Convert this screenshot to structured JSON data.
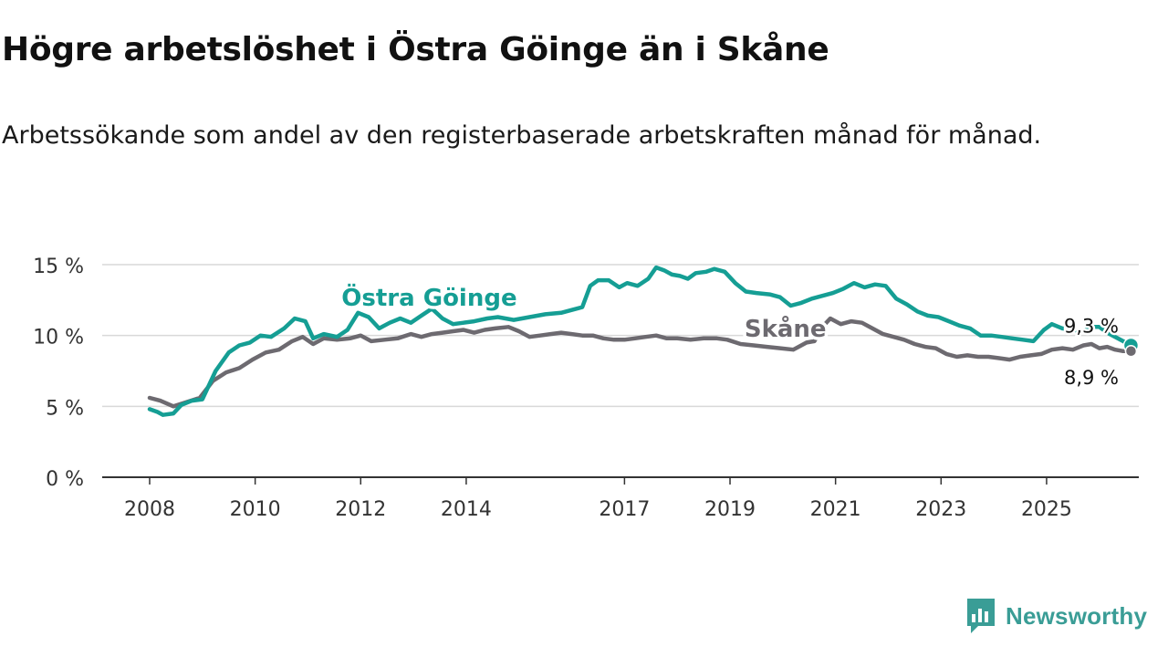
{
  "chart_data": {
    "type": "line",
    "title": "Högre arbetslöshet i Östra Göinge än i Skåne",
    "subtitle": "Arbetssökande som andel av den registerbaserade arbetskraften månad för månad.",
    "xlabel": "",
    "ylabel": "",
    "ylim": [
      0,
      15
    ],
    "xlim": [
      2008,
      2026.75
    ],
    "x_ticks": [
      "2008",
      "2010",
      "2012",
      "2014",
      "2017",
      "2019",
      "2021",
      "2023",
      "2025"
    ],
    "y_ticks": [
      "0 %",
      "5 %",
      "10 %",
      "15 %"
    ],
    "grid": true,
    "series": [
      {
        "name": "Östra Göinge",
        "color": "#159e94",
        "end_label": "9,3 %",
        "points": [
          [
            2008.0,
            4.8
          ],
          [
            2008.15,
            4.6
          ],
          [
            2008.25,
            4.4
          ],
          [
            2008.45,
            4.5
          ],
          [
            2008.6,
            5.1
          ],
          [
            2008.8,
            5.4
          ],
          [
            2009.0,
            5.5
          ],
          [
            2009.25,
            7.5
          ],
          [
            2009.5,
            8.8
          ],
          [
            2009.7,
            9.3
          ],
          [
            2009.9,
            9.5
          ],
          [
            2010.1,
            10.0
          ],
          [
            2010.3,
            9.9
          ],
          [
            2010.55,
            10.5
          ],
          [
            2010.75,
            11.2
          ],
          [
            2010.95,
            11.0
          ],
          [
            2011.1,
            9.8
          ],
          [
            2011.3,
            10.1
          ],
          [
            2011.55,
            9.9
          ],
          [
            2011.75,
            10.4
          ],
          [
            2011.95,
            11.6
          ],
          [
            2012.15,
            11.3
          ],
          [
            2012.35,
            10.5
          ],
          [
            2012.55,
            10.9
          ],
          [
            2012.75,
            11.2
          ],
          [
            2012.95,
            10.9
          ],
          [
            2013.15,
            11.4
          ],
          [
            2013.35,
            11.9
          ],
          [
            2013.55,
            11.2
          ],
          [
            2013.75,
            10.8
          ],
          [
            2013.95,
            10.9
          ],
          [
            2014.15,
            11.0
          ],
          [
            2014.4,
            11.2
          ],
          [
            2014.6,
            11.3
          ],
          [
            2014.9,
            11.1
          ],
          [
            2015.2,
            11.3
          ],
          [
            2015.5,
            11.5
          ],
          [
            2015.8,
            11.6
          ],
          [
            2016.0,
            11.8
          ],
          [
            2016.2,
            12.0
          ],
          [
            2016.35,
            13.5
          ],
          [
            2016.5,
            13.9
          ],
          [
            2016.7,
            13.9
          ],
          [
            2016.9,
            13.4
          ],
          [
            2017.05,
            13.7
          ],
          [
            2017.25,
            13.5
          ],
          [
            2017.45,
            14.0
          ],
          [
            2017.6,
            14.8
          ],
          [
            2017.75,
            14.6
          ],
          [
            2017.9,
            14.3
          ],
          [
            2018.05,
            14.2
          ],
          [
            2018.2,
            14.0
          ],
          [
            2018.35,
            14.4
          ],
          [
            2018.55,
            14.5
          ],
          [
            2018.7,
            14.7
          ],
          [
            2018.9,
            14.5
          ],
          [
            2019.1,
            13.7
          ],
          [
            2019.3,
            13.1
          ],
          [
            2019.5,
            13.0
          ],
          [
            2019.75,
            12.9
          ],
          [
            2019.95,
            12.7
          ],
          [
            2020.15,
            12.1
          ],
          [
            2020.35,
            12.3
          ],
          [
            2020.55,
            12.6
          ],
          [
            2020.75,
            12.8
          ],
          [
            2020.95,
            13.0
          ],
          [
            2021.15,
            13.3
          ],
          [
            2021.35,
            13.7
          ],
          [
            2021.55,
            13.4
          ],
          [
            2021.75,
            13.6
          ],
          [
            2021.95,
            13.5
          ],
          [
            2022.15,
            12.6
          ],
          [
            2022.35,
            12.2
          ],
          [
            2022.55,
            11.7
          ],
          [
            2022.75,
            11.4
          ],
          [
            2022.95,
            11.3
          ],
          [
            2023.15,
            11.0
          ],
          [
            2023.35,
            10.7
          ],
          [
            2023.55,
            10.5
          ],
          [
            2023.75,
            10.0
          ],
          [
            2023.95,
            10.0
          ],
          [
            2024.15,
            9.9
          ],
          [
            2024.35,
            9.8
          ],
          [
            2024.55,
            9.7
          ],
          [
            2024.75,
            9.6
          ],
          [
            2024.95,
            10.4
          ],
          [
            2025.1,
            10.8
          ],
          [
            2025.3,
            10.5
          ],
          [
            2025.5,
            10.4
          ],
          [
            2025.7,
            10.3
          ],
          [
            2025.85,
            10.6
          ],
          [
            2026.0,
            10.6
          ],
          [
            2026.15,
            10.2
          ],
          [
            2026.3,
            9.9
          ],
          [
            2026.45,
            9.6
          ],
          [
            2026.6,
            9.3
          ]
        ]
      },
      {
        "name": "Skåne",
        "color": "#6d6a70",
        "end_label": "8,9 %",
        "points": [
          [
            2008.0,
            5.6
          ],
          [
            2008.2,
            5.4
          ],
          [
            2008.45,
            5.0
          ],
          [
            2008.7,
            5.3
          ],
          [
            2008.95,
            5.6
          ],
          [
            2009.2,
            6.8
          ],
          [
            2009.45,
            7.4
          ],
          [
            2009.7,
            7.7
          ],
          [
            2009.95,
            8.3
          ],
          [
            2010.2,
            8.8
          ],
          [
            2010.45,
            9.0
          ],
          [
            2010.7,
            9.6
          ],
          [
            2010.9,
            9.9
          ],
          [
            2011.1,
            9.4
          ],
          [
            2011.3,
            9.8
          ],
          [
            2011.55,
            9.7
          ],
          [
            2011.8,
            9.8
          ],
          [
            2012.0,
            10.0
          ],
          [
            2012.2,
            9.6
          ],
          [
            2012.45,
            9.7
          ],
          [
            2012.7,
            9.8
          ],
          [
            2012.95,
            10.1
          ],
          [
            2013.15,
            9.9
          ],
          [
            2013.35,
            10.1
          ],
          [
            2013.55,
            10.2
          ],
          [
            2013.75,
            10.3
          ],
          [
            2013.95,
            10.4
          ],
          [
            2014.15,
            10.2
          ],
          [
            2014.35,
            10.4
          ],
          [
            2014.55,
            10.5
          ],
          [
            2014.8,
            10.6
          ],
          [
            2015.0,
            10.3
          ],
          [
            2015.2,
            9.9
          ],
          [
            2015.4,
            10.0
          ],
          [
            2015.6,
            10.1
          ],
          [
            2015.8,
            10.2
          ],
          [
            2016.0,
            10.1
          ],
          [
            2016.2,
            10.0
          ],
          [
            2016.4,
            10.0
          ],
          [
            2016.6,
            9.8
          ],
          [
            2016.8,
            9.7
          ],
          [
            2017.0,
            9.7
          ],
          [
            2017.2,
            9.8
          ],
          [
            2017.4,
            9.9
          ],
          [
            2017.6,
            10.0
          ],
          [
            2017.8,
            9.8
          ],
          [
            2018.0,
            9.8
          ],
          [
            2018.25,
            9.7
          ],
          [
            2018.5,
            9.8
          ],
          [
            2018.75,
            9.8
          ],
          [
            2018.95,
            9.7
          ],
          [
            2019.2,
            9.4
          ],
          [
            2019.45,
            9.3
          ],
          [
            2019.7,
            9.2
          ],
          [
            2019.95,
            9.1
          ],
          [
            2020.2,
            9.0
          ],
          [
            2020.45,
            9.5
          ],
          [
            2020.6,
            9.6
          ],
          [
            2020.75,
            10.6
          ],
          [
            2020.9,
            11.2
          ],
          [
            2021.1,
            10.8
          ],
          [
            2021.3,
            11.0
          ],
          [
            2021.5,
            10.9
          ],
          [
            2021.7,
            10.5
          ],
          [
            2021.9,
            10.1
          ],
          [
            2022.1,
            9.9
          ],
          [
            2022.3,
            9.7
          ],
          [
            2022.5,
            9.4
          ],
          [
            2022.7,
            9.2
          ],
          [
            2022.9,
            9.1
          ],
          [
            2023.1,
            8.7
          ],
          [
            2023.3,
            8.5
          ],
          [
            2023.5,
            8.6
          ],
          [
            2023.7,
            8.5
          ],
          [
            2023.9,
            8.5
          ],
          [
            2024.1,
            8.4
          ],
          [
            2024.3,
            8.3
          ],
          [
            2024.5,
            8.5
          ],
          [
            2024.7,
            8.6
          ],
          [
            2024.9,
            8.7
          ],
          [
            2025.1,
            9.0
          ],
          [
            2025.3,
            9.1
          ],
          [
            2025.5,
            9.0
          ],
          [
            2025.7,
            9.3
          ],
          [
            2025.85,
            9.4
          ],
          [
            2026.0,
            9.1
          ],
          [
            2026.15,
            9.2
          ],
          [
            2026.3,
            9.0
          ],
          [
            2026.45,
            8.9
          ],
          [
            2026.6,
            8.9
          ]
        ]
      }
    ],
    "annotations": [
      {
        "text": "Östra Göinge",
        "series": "Östra Göinge",
        "x": 2013.3,
        "y": 12.1
      },
      {
        "text": "Skåne",
        "series": "Skåne",
        "x": 2020.05,
        "y": 9.9
      }
    ]
  },
  "brand": {
    "name": "Newsworthy",
    "logo_icon": "chart-bubble-icon",
    "color": "#3a9d96"
  }
}
